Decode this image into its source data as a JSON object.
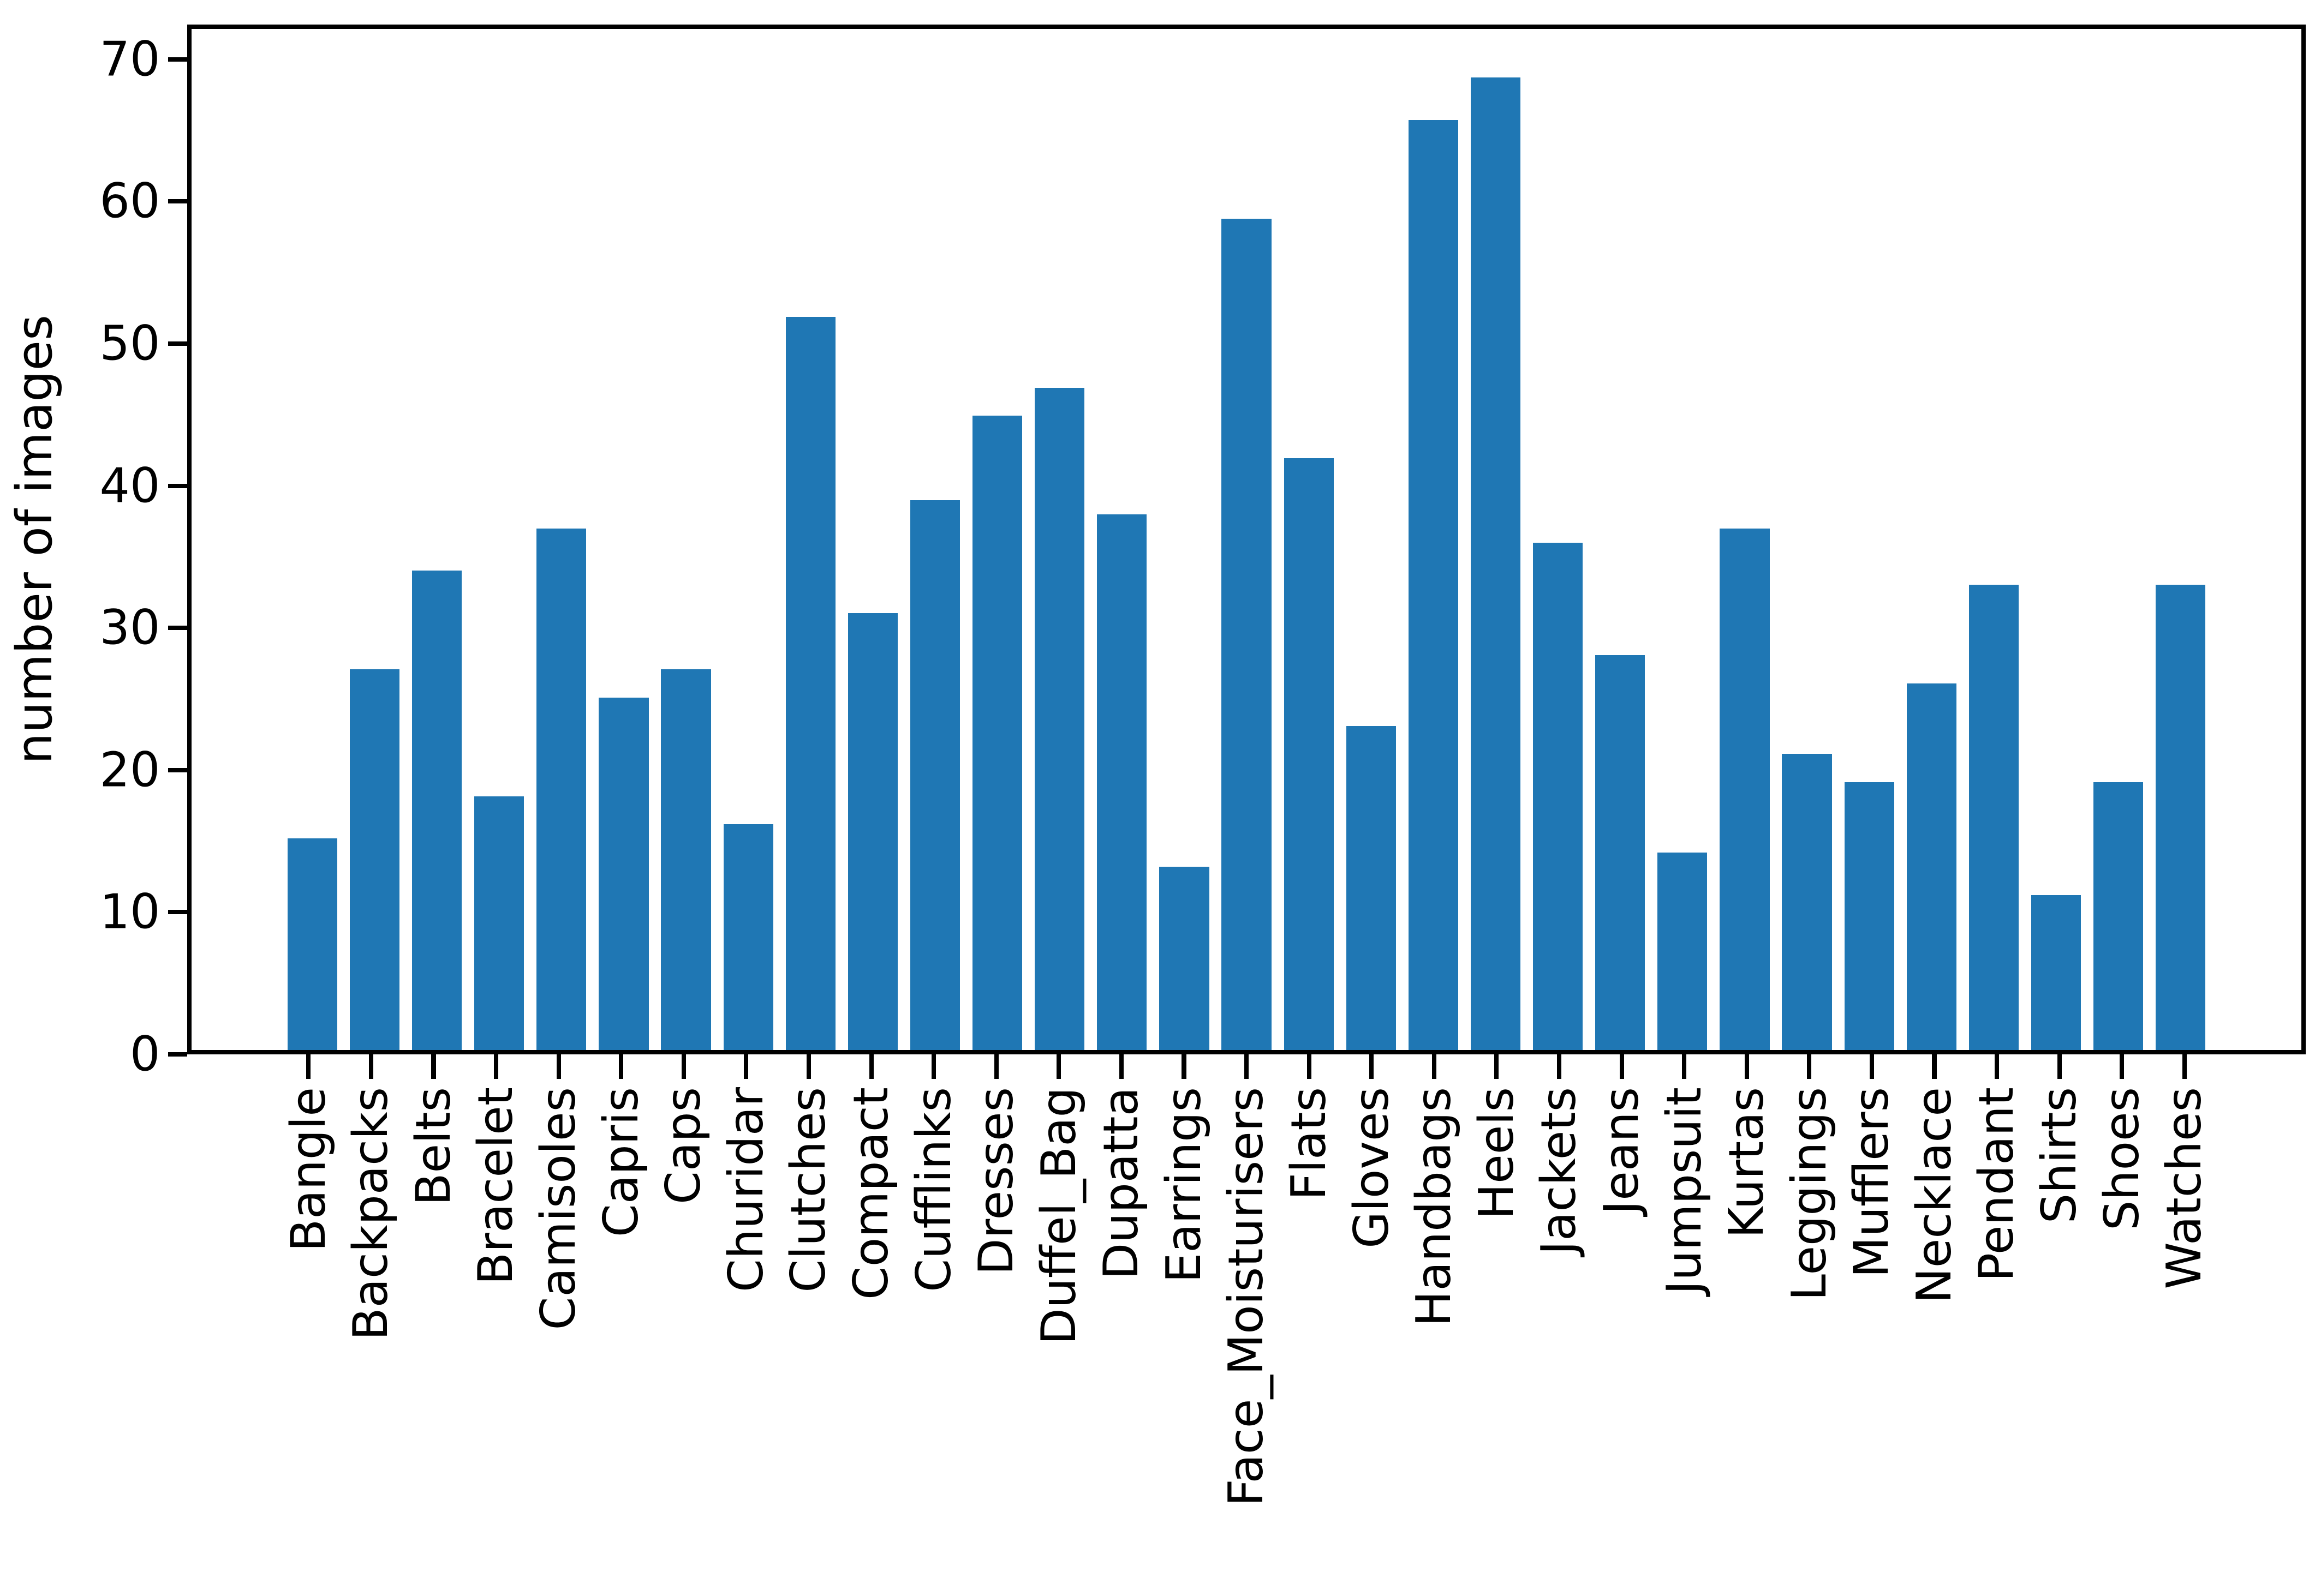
{
  "chart_data": {
    "type": "bar",
    "title": "",
    "xlabel": "",
    "ylabel": "number of images",
    "categories": [
      "Bangle",
      "Backpacks",
      "Belts",
      "Bracelet",
      "Camisoles",
      "Capris",
      "Caps",
      "Churidar",
      "Clutches",
      "Compact",
      "Cufflinks",
      "Dresses",
      "Duffel_Bag",
      "Dupatta",
      "Earrings",
      "Face_Moisturisers",
      "Flats",
      "Gloves",
      "Handbags",
      "Heels",
      "Jackets",
      "Jeans",
      "Jumpsuit",
      "Kurtas",
      "Leggings",
      "Mufflers",
      "Necklace",
      "Pendant",
      "Shirts",
      "Shoes",
      "Watches"
    ],
    "values": [
      15,
      27,
      34,
      18,
      37,
      25,
      27,
      16,
      52,
      31,
      39,
      45,
      47,
      38,
      13,
      59,
      42,
      23,
      66,
      69,
      36,
      28,
      14,
      37,
      21,
      19,
      26,
      33,
      11,
      19,
      33
    ],
    "yticks": [
      0,
      10,
      20,
      30,
      40,
      50,
      60,
      70
    ],
    "ylim": [
      0,
      72.45
    ],
    "bar_width_fraction": 0.8,
    "grid": false,
    "legend_position": "none",
    "colors": {
      "bar": "#1f77b4",
      "axis": "#000000",
      "text": "#000000",
      "background": "#ffffff"
    }
  }
}
